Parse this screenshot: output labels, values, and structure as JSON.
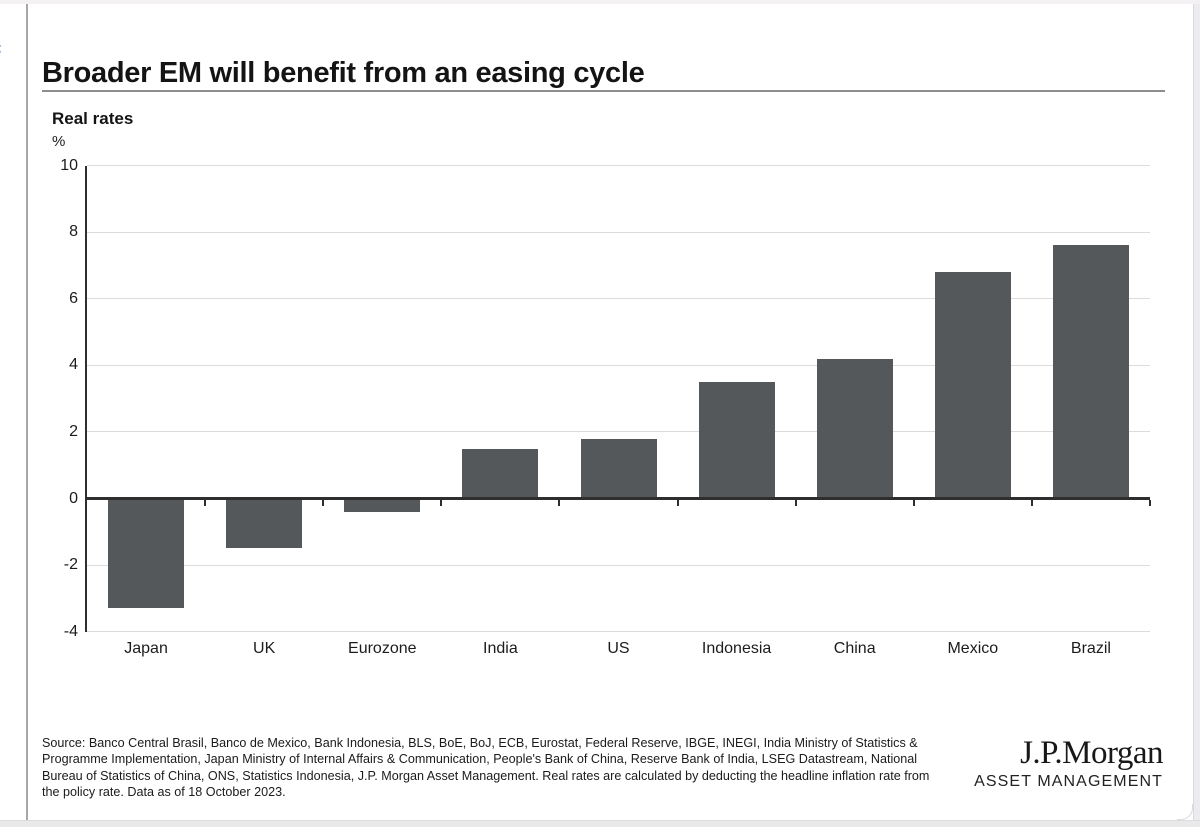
{
  "viewer": {
    "back_icon": "‹"
  },
  "slide": {
    "title": "Broader EM will benefit from an easing cycle"
  },
  "chart_data": {
    "type": "bar",
    "title": "Real rates",
    "unit": "%",
    "categories": [
      "Japan",
      "UK",
      "Eurozone",
      "India",
      "US",
      "Indonesia",
      "China",
      "Mexico",
      "Brazil"
    ],
    "values": [
      -3.3,
      -1.5,
      -0.4,
      1.5,
      1.8,
      3.5,
      4.2,
      6.8,
      7.6
    ],
    "series_name": "Real rates (%)",
    "ylim": [
      -4,
      10
    ],
    "yticks": [
      10,
      8,
      6,
      4,
      2,
      0,
      -2,
      -4
    ],
    "grid": true,
    "legend_position": "none",
    "bar_color": "#55585b",
    "gridline_color": "#dcdcdc",
    "axis_color": "#2e2e2e"
  },
  "footer": {
    "source_text": "Source: Banco Central Brasil, Banco de Mexico, Bank Indonesia, BLS, BoE, BoJ, ECB, Eurostat, Federal Reserve, IBGE, INEGI, India Ministry of Statistics &\nProgramme Implementation, Japan Ministry of Internal Affairs & Communication, People's Bank of China, Reserve Bank of India, LSEG Datastream, National\nBureau of Statistics of China, ONS, Statistics Indonesia, J.P. Morgan Asset Management. Real rates are calculated by deducting the headline inflation rate from\nthe policy rate. Data as of 18 October 2023.",
    "logo_primary": "J.P.Morgan",
    "logo_secondary": "ASSET MANAGEMENT"
  }
}
